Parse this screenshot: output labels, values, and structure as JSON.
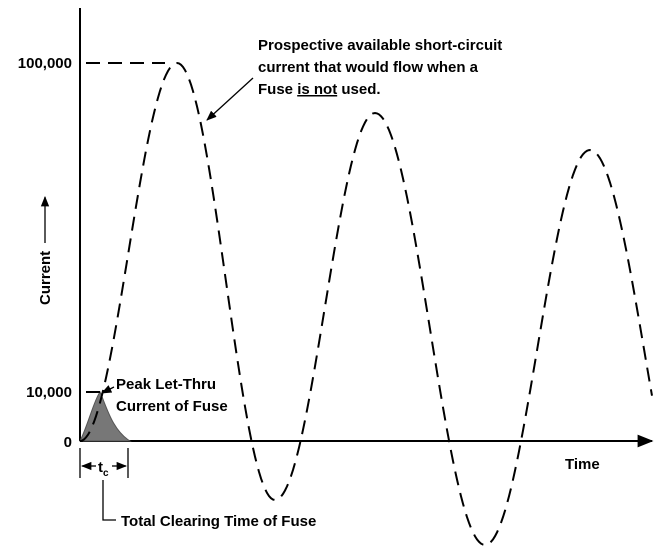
{
  "axes": {
    "y_label": "Current",
    "x_label": "Time",
    "y_ticks": [
      "100,000",
      "10,000",
      "0"
    ]
  },
  "annotations": {
    "prospective": {
      "line1": "Prospective available short-circuit",
      "line2": "current that would flow when a",
      "line3_a": "Fuse",
      "line3_b": "is not",
      "line3_c": "used."
    },
    "peak": {
      "line1": "Peak Let-Thru",
      "line2": "Current of Fuse"
    },
    "tc": {
      "symbol": "t",
      "subscript": "c"
    },
    "clearing": "Total Clearing Time of Fuse"
  }
}
